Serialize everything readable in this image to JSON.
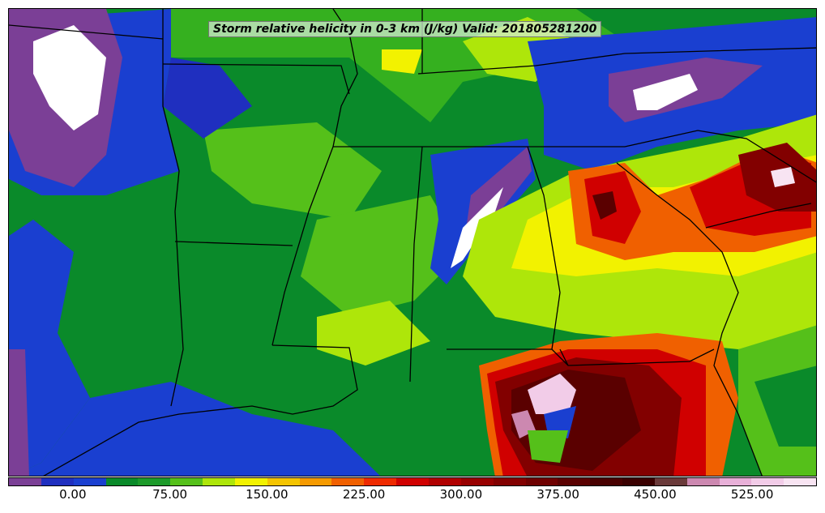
{
  "map": {
    "title": "Storm relative helicity in 0-3 km (J/kg) Valid: 201805281200"
  },
  "colorbar": {
    "colors": [
      "#7b3f96",
      "#1f2fbf",
      "#1a3fd0",
      "#0a8a2a",
      "#1c9a2a",
      "#55c01a",
      "#aee60a",
      "#f2f200",
      "#f4c400",
      "#f59a00",
      "#f06000",
      "#ee2a00",
      "#d00000",
      "#b00000",
      "#980000",
      "#820000",
      "#6e0000",
      "#5a0000",
      "#480000",
      "#3a0000",
      "#6a3a3a",
      "#cc88b0",
      "#e8b0d8",
      "#f2cce8",
      "#f8e4f2"
    ],
    "tick_labels": [
      "0.00",
      "75.00",
      "150.00",
      "225.00",
      "300.00",
      "375.00",
      "450.00",
      "525.00"
    ]
  },
  "legend": {
    "unit": "J/kg"
  }
}
